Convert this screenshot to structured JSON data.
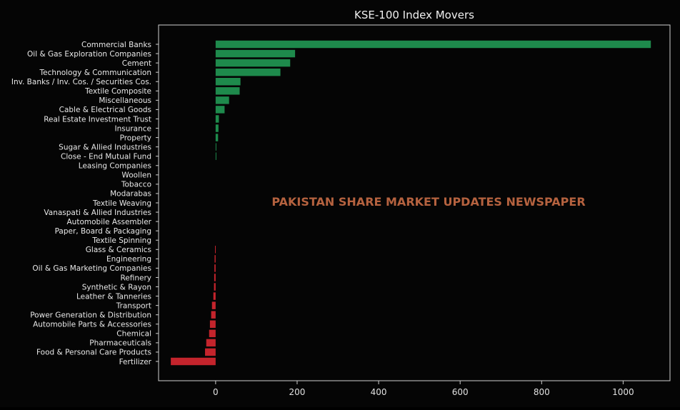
{
  "chart_data": {
    "type": "bar",
    "orientation": "horizontal",
    "title": "KSE-100 Index Movers",
    "xlabel": "",
    "ylabel": "",
    "xlim": [
      -140,
      1115
    ],
    "xticks": [
      0,
      200,
      400,
      600,
      800,
      1000
    ],
    "grid": false,
    "legend": "none",
    "positive_color": "#1e8a4c",
    "negative_color": "#c4242c",
    "categories": [
      "Commercial Banks",
      "Oil & Gas Exploration Companies",
      "Cement",
      "Technology & Communication",
      "Inv. Banks / Inv. Cos. / Securities Cos.",
      "Textile Composite",
      "Miscellaneous",
      "Cable & Electrical Goods",
      "Real Estate Investment Trust",
      "Insurance",
      "Property",
      "Sugar & Allied Industries",
      "Close - End Mutual Fund",
      "Leasing Companies",
      "Woollen",
      "Tobacco",
      "Modarabas",
      "Textile Weaving",
      "Vanaspati & Allied Industries",
      "Automobile Assembler",
      "Paper, Board & Packaging",
      "Textile Spinning",
      "Glass & Ceramics",
      "Engineering",
      "Oil & Gas Marketing Companies",
      "Refinery",
      "Synthetic & Rayon",
      "Leather & Tanneries",
      "Transport",
      "Power Generation & Distribution",
      "Automobile Parts & Accessories",
      "Chemical",
      "Pharmaceuticals",
      "Food & Personal Care Products",
      "Fertilizer"
    ],
    "values": [
      1068,
      195,
      183,
      159,
      61,
      59,
      33,
      22,
      8,
      7,
      6,
      1.5,
      1,
      0,
      0,
      0,
      0,
      0,
      0,
      0,
      0,
      0,
      -1.5,
      -2.5,
      -3,
      -3.5,
      -4,
      -5.5,
      -9,
      -11,
      -14,
      -16,
      -23,
      -26,
      -110
    ]
  },
  "watermark": "PAKISTAN SHARE MARKET UPDATES NEWSPAPER"
}
